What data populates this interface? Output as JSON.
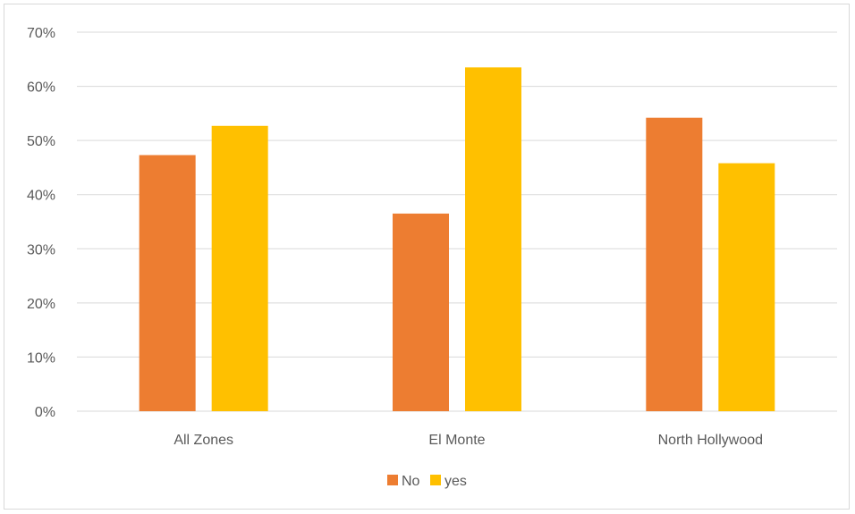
{
  "chart_data": {
    "type": "bar",
    "categories": [
      "All Zones",
      "El Monte",
      "North Hollywood"
    ],
    "series": [
      {
        "name": "No",
        "values": [
          0.473,
          0.365,
          0.542
        ],
        "color": "#ED7D31"
      },
      {
        "name": "yes",
        "values": [
          0.527,
          0.635,
          0.458
        ],
        "color": "#FFC000"
      }
    ],
    "ylim": [
      0,
      0.7
    ],
    "yticks": [
      0,
      0.1,
      0.2,
      0.3,
      0.4,
      0.5,
      0.6,
      0.7
    ],
    "ytick_labels": [
      "0%",
      "10%",
      "20%",
      "30%",
      "40%",
      "50%",
      "60%",
      "70%"
    ],
    "grid": true,
    "legend_position": "bottom",
    "colors": {
      "grid": "#D9D9D9",
      "axis_text": "#595959",
      "border": "#D9D9D9"
    }
  }
}
